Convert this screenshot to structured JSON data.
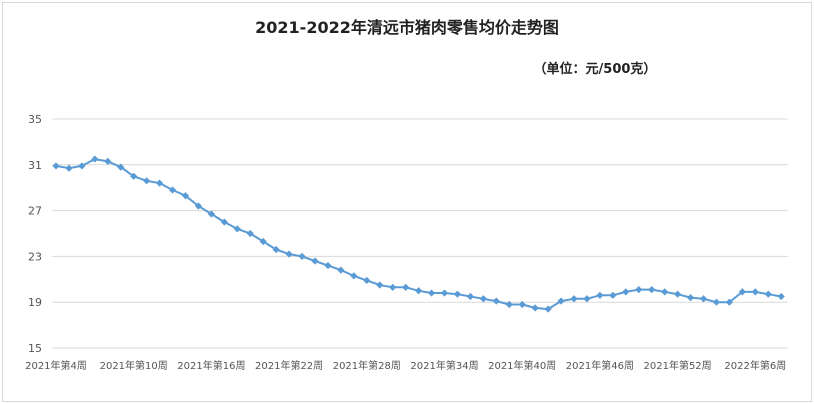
{
  "chart_data": {
    "type": "line",
    "title": "2021-2022年清远市猪肉零售均价走势图",
    "subtitle": "（单位：元/500克）",
    "xlabel": "",
    "ylabel": "",
    "ylim": [
      15,
      35
    ],
    "yticks": [
      15,
      19,
      23,
      27,
      31,
      35
    ],
    "grid": true,
    "color": "#5b9bd5",
    "x_tick_labels": [
      "2021年第4周",
      "2021年第10周",
      "2021年第16周",
      "2021年第22周",
      "2021年第28周",
      "2021年第34周",
      "2021年第40周",
      "2021年第46周",
      "2021年第52周",
      "2022年第6周"
    ],
    "x_tick_every": 6,
    "series": [
      {
        "values": [
          30.9,
          30.7,
          30.9,
          31.5,
          31.3,
          30.8,
          30.0,
          29.6,
          29.4,
          28.8,
          28.3,
          27.4,
          26.7,
          26.0,
          25.4,
          25.0,
          24.3,
          23.6,
          23.2,
          23.0,
          22.6,
          22.2,
          21.8,
          21.3,
          20.9,
          20.5,
          20.3,
          20.3,
          20.0,
          19.8,
          19.8,
          19.7,
          19.5,
          19.3,
          19.1,
          18.8,
          18.8,
          18.5,
          18.4,
          19.1,
          19.3,
          19.3,
          19.6,
          19.6,
          19.9,
          20.1,
          20.1,
          19.9,
          19.7,
          19.4,
          19.3,
          19.0,
          19.0,
          19.9,
          19.9,
          19.7,
          19.5
        ]
      }
    ]
  }
}
